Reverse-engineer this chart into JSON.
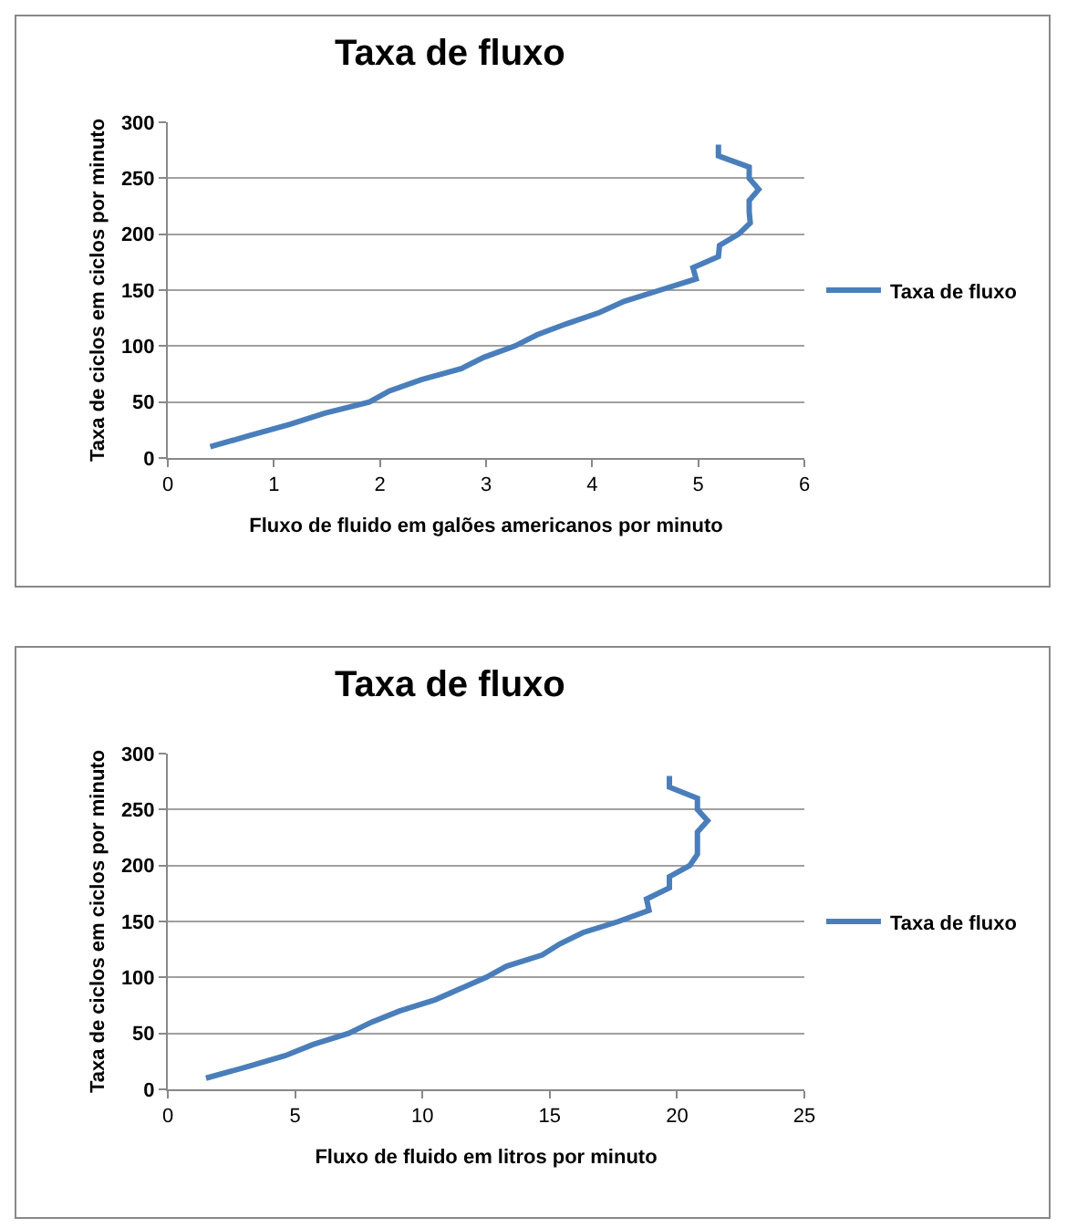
{
  "chart_data": [
    {
      "type": "line",
      "title": "Taxa de fluxo",
      "xlabel": "Fluxo de fluido em galões americanos por minuto",
      "ylabel": "Taxa de ciclos em ciclos por minuto",
      "series": [
        {
          "name": "Taxa de fluxo",
          "color": "#4a7ebb",
          "x": [
            0.4,
            0.77,
            1.15,
            1.48,
            1.9,
            2.09,
            2.39,
            2.77,
            2.98,
            3.27,
            3.48,
            3.76,
            4.07,
            4.3,
            4.64,
            4.98,
            4.95,
            5.19,
            5.2,
            5.38,
            5.49,
            5.48,
            5.48,
            5.57,
            5.48,
            5.48,
            5.19,
            5.19
          ],
          "values": [
            10,
            20,
            30,
            40,
            50,
            60,
            70,
            80,
            90,
            100,
            110,
            120,
            130,
            140,
            150,
            160,
            170,
            180,
            190,
            200,
            210,
            220,
            230,
            240,
            250,
            260,
            270,
            280
          ]
        }
      ],
      "xlim": [
        0,
        6
      ],
      "xticks": [
        0,
        1,
        2,
        3,
        4,
        5,
        6
      ],
      "ylim": [
        0,
        300
      ],
      "yticks": [
        0,
        50,
        100,
        150,
        200,
        250,
        300
      ],
      "grid": "y",
      "legend": "right",
      "marker": "none"
    },
    {
      "type": "line",
      "title": "Taxa de fluxo",
      "xlabel": "Fluxo de fluido em litros por minuto",
      "ylabel": "Taxa de ciclos em ciclos por minuto",
      "series": [
        {
          "name": "Taxa de fluxo",
          "color": "#4a7ebb",
          "x": [
            1.5,
            3.1,
            4.6,
            5.7,
            7.1,
            8.0,
            9.1,
            10.5,
            11.5,
            12.5,
            13.3,
            14.7,
            15.4,
            16.3,
            17.7,
            18.9,
            18.8,
            19.7,
            19.7,
            20.5,
            20.8,
            20.8,
            20.8,
            21.2,
            20.8,
            20.8,
            19.7,
            19.7
          ],
          "values": [
            10,
            20,
            30,
            40,
            50,
            60,
            70,
            80,
            90,
            100,
            110,
            120,
            130,
            140,
            150,
            160,
            170,
            180,
            190,
            200,
            210,
            220,
            230,
            240,
            250,
            260,
            270,
            280
          ]
        }
      ],
      "xlim": [
        0,
        25
      ],
      "xticks": [
        0,
        5,
        10,
        15,
        20,
        25
      ],
      "ylim": [
        0,
        300
      ],
      "yticks": [
        0,
        50,
        100,
        150,
        200,
        250,
        300
      ],
      "grid": "y",
      "legend": "right",
      "marker": "none"
    }
  ]
}
